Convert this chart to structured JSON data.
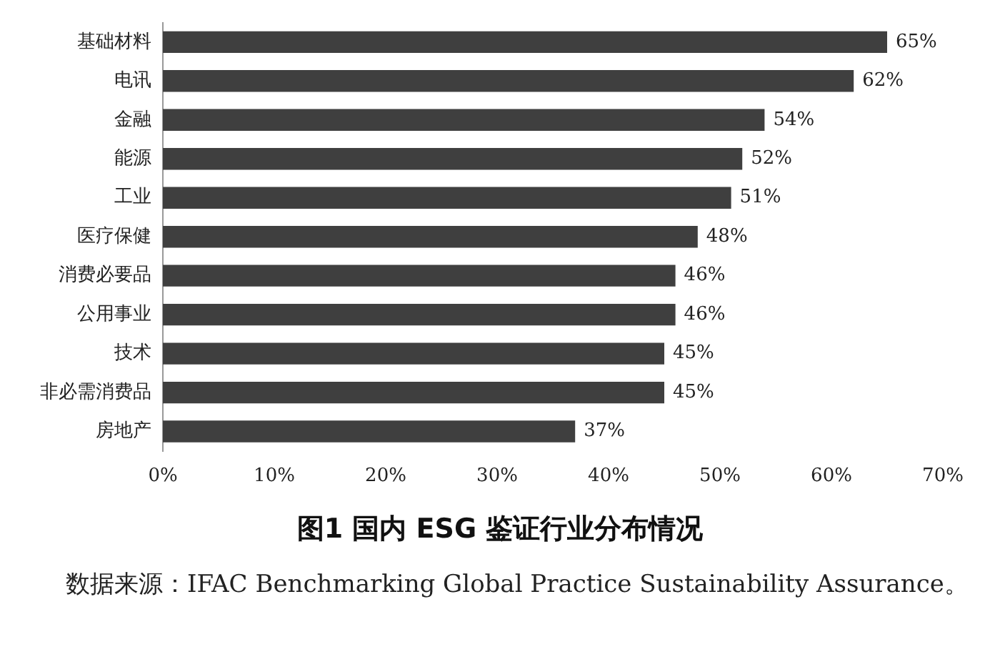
{
  "chart_data": {
    "type": "bar",
    "orientation": "horizontal",
    "title": "图1  国内 ESG 鉴证行业分布情况",
    "categories": [
      "基础材料",
      "电讯",
      "金融",
      "能源",
      "工业",
      "医疗保健",
      "消费必要品",
      "公用事业",
      "技术",
      "非必需消费品",
      "房地产"
    ],
    "values": [
      65,
      62,
      54,
      52,
      51,
      48,
      46,
      46,
      45,
      45,
      37
    ],
    "value_labels": [
      "65%",
      "62%",
      "54%",
      "52%",
      "51%",
      "48%",
      "46%",
      "46%",
      "45%",
      "45%",
      "37%"
    ],
    "color": "#3f3f3f",
    "xlim": [
      0,
      70
    ],
    "xticks": [
      {
        "value": 0,
        "label": "0%"
      },
      {
        "value": 10,
        "label": "10%"
      },
      {
        "value": 20,
        "label": "20%"
      },
      {
        "value": 30,
        "label": "30%"
      },
      {
        "value": 40,
        "label": "40%"
      },
      {
        "value": 50,
        "label": "50%"
      },
      {
        "value": 60,
        "label": "60%"
      },
      {
        "value": 70,
        "label": "70%"
      }
    ],
    "grid": false,
    "legend": false,
    "annotations": [
      "数据来源：IFAC Benchmarking Global Practice Sustainability Assurance。"
    ]
  }
}
